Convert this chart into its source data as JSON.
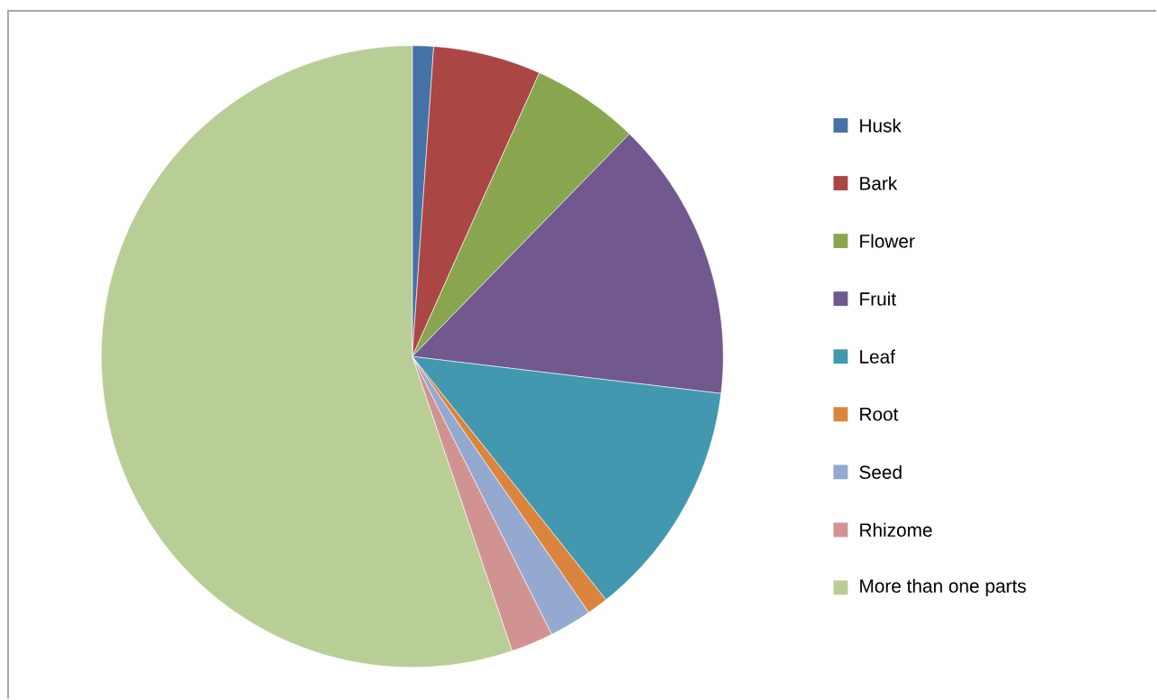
{
  "chart_data": {
    "type": "pie",
    "categories": [
      "Husk",
      "Bark",
      "Flower",
      "Fruit",
      "Leaf",
      "Root",
      "Seed",
      "Rhizome",
      "More than one parts"
    ],
    "values": [
      1.1,
      5.6,
      5.6,
      14.6,
      12.4,
      1.1,
      2.2,
      2.2,
      55.2
    ],
    "colors": [
      "#4572a7",
      "#aa4643",
      "#89a54e",
      "#71588f",
      "#4198af",
      "#db843d",
      "#93a9cf",
      "#d19392",
      "#b9cd96"
    ],
    "legend": "right"
  }
}
